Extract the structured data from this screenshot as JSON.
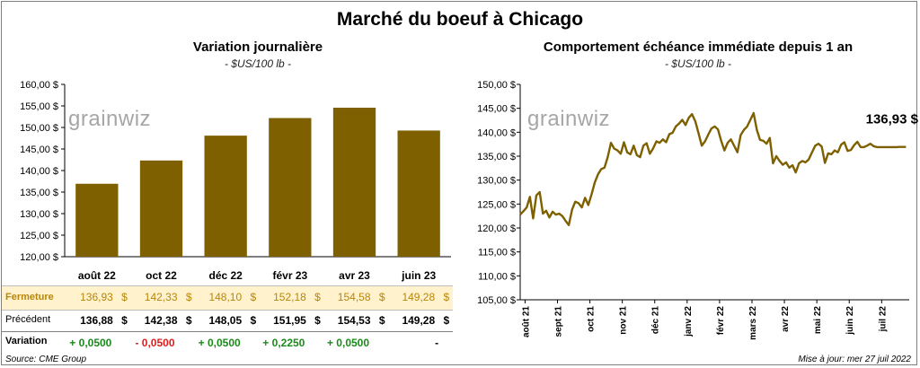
{
  "title": "Marché du boeuf à Chicago",
  "logo_text": "grainwiz",
  "left_chart": {
    "subtitle": "Variation journalière",
    "unit": "- $US/100 lb -"
  },
  "right_chart": {
    "subtitle": "Comportement échéance immédiate depuis 1 an",
    "unit": "- $US/100 lb -",
    "last_value_label": "136,93 $"
  },
  "table": {
    "fermeture_label": "Fermeture",
    "precedent_label": "Précédent",
    "variation_label": "Variation",
    "currency": "$",
    "fermeture": [
      "136,93",
      "142,33",
      "148,10",
      "152,18",
      "154,58",
      "149,28"
    ],
    "precedent": [
      "136,88",
      "142,38",
      "148,05",
      "151,95",
      "154,53",
      "149,28"
    ],
    "variation": [
      "+ 0,0500",
      "- 0,0500",
      "+ 0,0500",
      "+ 0,2250",
      "+ 0,0500",
      "-"
    ],
    "variation_sign": [
      "pos",
      "neg",
      "pos",
      "pos",
      "pos",
      "neu"
    ]
  },
  "footer": {
    "source": "Source: CME Group",
    "update": "Mise à jour: mer 27 juil 2022"
  },
  "colors": {
    "bar": "#7f6000",
    "line": "#7f6000",
    "highlight_row": "#fff2cc",
    "fermeture_text": "#b8860b",
    "positive": "#1a8a1a",
    "negative": "#e01c1c"
  },
  "chart_data": [
    {
      "type": "bar",
      "categories": [
        "août 22",
        "oct 22",
        "déc 22",
        "févr 23",
        "avr 23",
        "juin 23"
      ],
      "values": [
        136.93,
        142.33,
        148.1,
        152.18,
        154.58,
        149.28
      ],
      "title": "Variation journalière",
      "ylabel": "- $US/100 lb -",
      "ylim": [
        120,
        160
      ],
      "yticks": [
        "120,00 $",
        "125,00 $",
        "130,00 $",
        "135,00 $",
        "140,00 $",
        "145,00 $",
        "150,00 $",
        "155,00 $",
        "160,00 $"
      ],
      "grid": false
    },
    {
      "type": "line",
      "title": "Comportement échéance immédiate depuis 1 an",
      "ylabel": "- $US/100 lb -",
      "ylim": [
        105,
        150
      ],
      "yticks": [
        "105,00 $",
        "110,00 $",
        "115,00 $",
        "120,00 $",
        "125,00 $",
        "130,00 $",
        "135,00 $",
        "140,00 $",
        "145,00 $",
        "150,00 $"
      ],
      "xticks": [
        "août 21",
        "sept 21",
        "oct 21",
        "nov 21",
        "déc 21",
        "janv 22",
        "févr 22",
        "mars 22",
        "avr 22",
        "mai 22",
        "juin 22",
        "juil 22"
      ],
      "x_range_months": [
        0,
        12
      ],
      "series": [
        {
          "x": [
            0.0,
            0.1,
            0.2,
            0.3,
            0.4,
            0.5,
            0.6,
            0.7,
            0.8,
            0.9,
            1.0,
            1.1,
            1.2,
            1.3,
            1.4,
            1.5,
            1.6,
            1.7,
            1.8,
            1.9,
            2.0,
            2.1,
            2.2,
            2.3,
            2.4,
            2.5,
            2.6,
            2.7,
            2.8,
            2.9,
            3.0,
            3.1,
            3.2,
            3.3,
            3.4,
            3.5,
            3.6,
            3.7,
            3.8,
            3.9,
            4.0,
            4.1,
            4.2,
            4.3,
            4.4,
            4.5,
            4.6,
            4.7,
            4.8,
            4.9,
            5.0,
            5.1,
            5.2,
            5.3,
            5.4,
            5.5,
            5.6,
            5.7,
            5.8,
            5.9,
            6.0,
            6.1,
            6.2,
            6.3,
            6.4,
            6.5,
            6.6,
            6.7,
            6.8,
            6.9,
            7.0,
            7.1,
            7.2,
            7.3,
            7.4,
            7.5,
            7.6,
            7.7,
            7.8,
            7.9,
            8.0,
            8.1,
            8.2,
            8.3,
            8.4,
            8.5,
            8.6,
            8.7,
            8.8,
            8.9,
            9.0,
            9.1,
            9.2,
            9.3,
            9.4,
            9.5,
            9.6,
            9.7,
            9.8,
            9.9,
            10.0,
            10.1,
            10.2,
            10.3,
            10.4,
            10.5,
            10.6,
            10.7,
            10.8,
            10.9,
            11.0,
            11.1,
            11.2,
            11.3,
            11.4,
            11.5,
            11.6,
            11.7,
            11.8,
            11.9
          ],
          "y": [
            122.8,
            123.5,
            124.3,
            126.5,
            122.0,
            126.8,
            127.5,
            123.0,
            123.6,
            122.2,
            123.4,
            122.8,
            123.0,
            122.5,
            121.5,
            120.6,
            123.8,
            125.5,
            125.2,
            124.3,
            126.3,
            124.8,
            127.0,
            129.5,
            131.2,
            132.3,
            132.6,
            134.8,
            137.8,
            136.6,
            136.2,
            135.5,
            137.9,
            135.8,
            135.4,
            137.2,
            135.2,
            134.8,
            137.2,
            137.7,
            135.5,
            136.6,
            138.1,
            137.8,
            138.5,
            137.9,
            139.6,
            139.9,
            141.2,
            141.8,
            142.6,
            141.5,
            143.0,
            143.8,
            142.3,
            139.8,
            137.2,
            138.1,
            139.5,
            140.8,
            141.2,
            140.6,
            138.2,
            136.2,
            137.8,
            138.5,
            137.2,
            135.8,
            139.4,
            140.5,
            141.2,
            142.6,
            144.0,
            140.5,
            138.4,
            138.2,
            137.6,
            138.8,
            133.5,
            135.0,
            134.0,
            133.2,
            133.7,
            132.6,
            133.1,
            131.6,
            133.5,
            134.0,
            133.7,
            134.3,
            135.8,
            137.2,
            137.6,
            137.0,
            133.6,
            135.6,
            135.4,
            136.2,
            135.8,
            137.4,
            137.9,
            136.1,
            136.3,
            137.3,
            138.0,
            136.9,
            136.9,
            137.2,
            137.6,
            137.1,
            136.9,
            136.9,
            136.9,
            136.9,
            136.9,
            136.9,
            136.9,
            136.93,
            136.93,
            136.93
          ]
        }
      ],
      "annotation": "136,93 $",
      "grid": false
    }
  ]
}
